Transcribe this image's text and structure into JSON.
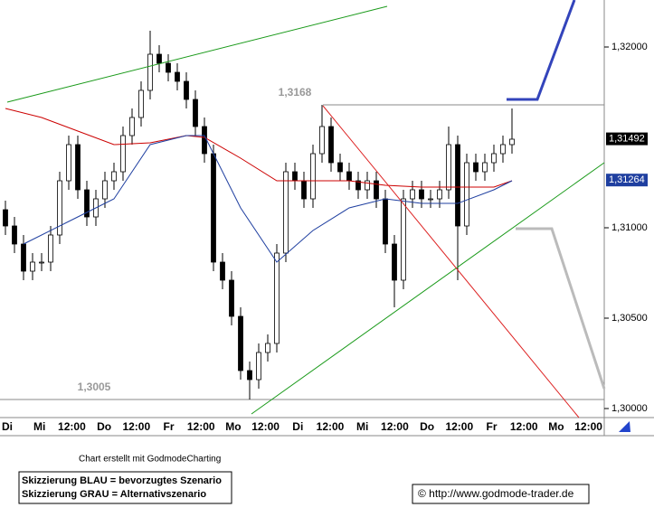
{
  "chart_data": {
    "type": "candlestick",
    "categories": [
      "Di",
      "Mi",
      "12:00",
      "Do",
      "12:00",
      "Fr",
      "12:00",
      "Mo",
      "12:00",
      "Di",
      "12:00",
      "Mi",
      "12:00",
      "Do",
      "12:00",
      "Fr",
      "12:00",
      "Mo",
      "12:00"
    ],
    "open": [
      1.311,
      1.3101,
      1.3091,
      1.3076,
      1.3081,
      1.3081,
      1.3096,
      1.3126,
      1.3146,
      1.3121,
      1.3106,
      1.3116,
      1.3126,
      1.3131,
      1.3151,
      1.3161,
      1.3176,
      1.3196,
      1.3191,
      1.3186,
      1.3181,
      1.3171,
      1.3156,
      1.3141,
      1.3081,
      1.3071,
      1.3051,
      1.3021,
      1.3016,
      1.3031,
      1.3036,
      1.3086,
      1.3131,
      1.3126,
      1.3116,
      1.3141,
      1.3156,
      1.3136,
      1.3131,
      1.3126,
      1.3121,
      1.3126,
      1.3116,
      1.3091,
      1.3071,
      1.3116,
      1.3121,
      1.3116,
      1.3116,
      1.3121,
      1.3146,
      1.3101,
      1.3136,
      1.3131,
      1.3136,
      1.3141,
      1.3146
    ],
    "high": [
      1.3115,
      1.3106,
      1.3096,
      1.3086,
      1.3086,
      1.3101,
      1.3131,
      1.3151,
      1.3151,
      1.3126,
      1.3121,
      1.3131,
      1.3136,
      1.3156,
      1.3166,
      1.3181,
      1.3209,
      1.3201,
      1.3196,
      1.3191,
      1.3186,
      1.3176,
      1.3161,
      1.3146,
      1.3086,
      1.3076,
      1.3056,
      1.3026,
      1.3036,
      1.3041,
      1.3091,
      1.3136,
      1.3136,
      1.3131,
      1.3146,
      1.3168,
      1.3161,
      1.3141,
      1.3136,
      1.3131,
      1.3131,
      1.3131,
      1.3121,
      1.3096,
      1.3121,
      1.3126,
      1.3126,
      1.3121,
      1.3126,
      1.3156,
      1.3151,
      1.3141,
      1.3141,
      1.3141,
      1.3146,
      1.3151,
      1.3166
    ],
    "low": [
      1.3096,
      1.3086,
      1.3071,
      1.3071,
      1.3076,
      1.3076,
      1.3091,
      1.3121,
      1.3116,
      1.3101,
      1.3101,
      1.3111,
      1.3121,
      1.3126,
      1.3146,
      1.3156,
      1.3171,
      1.3186,
      1.3181,
      1.3176,
      1.3166,
      1.3151,
      1.3136,
      1.3076,
      1.3066,
      1.3046,
      1.3016,
      1.3005,
      1.3011,
      1.3026,
      1.3031,
      1.3081,
      1.3121,
      1.3111,
      1.3111,
      1.3136,
      1.3131,
      1.3126,
      1.3121,
      1.3116,
      1.3116,
      1.3111,
      1.3086,
      1.3056,
      1.3066,
      1.3111,
      1.3111,
      1.3111,
      1.3111,
      1.3116,
      1.3071,
      1.3096,
      1.3126,
      1.3126,
      1.3131,
      1.3136,
      1.3141
    ],
    "close": [
      1.3101,
      1.3091,
      1.3076,
      1.3081,
      1.3081,
      1.3096,
      1.3126,
      1.3146,
      1.3121,
      1.3106,
      1.3116,
      1.3126,
      1.3131,
      1.3151,
      1.3161,
      1.3176,
      1.3196,
      1.3191,
      1.3186,
      1.3181,
      1.3171,
      1.3156,
      1.3141,
      1.3081,
      1.3071,
      1.3051,
      1.3021,
      1.3016,
      1.3031,
      1.3036,
      1.3086,
      1.3131,
      1.3126,
      1.3116,
      1.3141,
      1.3156,
      1.3136,
      1.3131,
      1.3126,
      1.3121,
      1.3126,
      1.3116,
      1.3091,
      1.3071,
      1.3116,
      1.3121,
      1.3116,
      1.3116,
      1.3121,
      1.3146,
      1.3101,
      1.3136,
      1.3131,
      1.3136,
      1.3141,
      1.3146,
      1.3149
    ],
    "moving_averages": [
      {
        "color": "#cc0000",
        "x": [
          0,
          4,
          8,
          12,
          16,
          20,
          22,
          26,
          30,
          34,
          38,
          42,
          46,
          50,
          54,
          56
        ],
        "values": [
          1.3166,
          1.3161,
          1.31535,
          1.3146,
          1.3147,
          1.3151,
          1.315,
          1.31385,
          1.3126,
          1.3126,
          1.3126,
          1.31235,
          1.31225,
          1.31225,
          1.31225,
          1.3126
        ]
      },
      {
        "color": "#1f3fa0",
        "x": [
          2,
          8,
          12,
          16,
          20,
          22,
          26,
          30,
          34,
          38,
          42,
          46,
          50,
          54,
          56
        ],
        "values": [
          1.3091,
          1.3106,
          1.3116,
          1.3146,
          1.3151,
          1.3151,
          1.3111,
          1.3081,
          1.30985,
          1.3111,
          1.3116,
          1.31135,
          1.31135,
          1.3121,
          1.3126
        ]
      }
    ],
    "ylim": [
      1.2995,
      1.3226
    ],
    "yticks": [
      {
        "value": 1.3,
        "label": "1,30000"
      },
      {
        "value": 1.305,
        "label": "1,30500"
      },
      {
        "value": 1.31,
        "label": "1,31000"
      },
      {
        "value": 1.32,
        "label": "1,32000"
      }
    ],
    "price_labels": [
      {
        "value": 1.31492,
        "label": "1,31492",
        "color": "#000000"
      },
      {
        "value": 1.31264,
        "label": "1,31264",
        "color": "#1f3fa0"
      }
    ],
    "annotations": [
      {
        "value": 1.3168,
        "label": "1,3168"
      },
      {
        "value": 1.3005,
        "label": "1,3005"
      }
    ]
  },
  "footer": {
    "credit": "Chart erstellt mit GodmodeCharting",
    "notes": [
      "Skizzierung BLAU = bevorzugtes Szenario",
      "Skizzierung GRAU = Alternativszenario"
    ],
    "copyright": "© http://www.godmode-trader.de"
  }
}
